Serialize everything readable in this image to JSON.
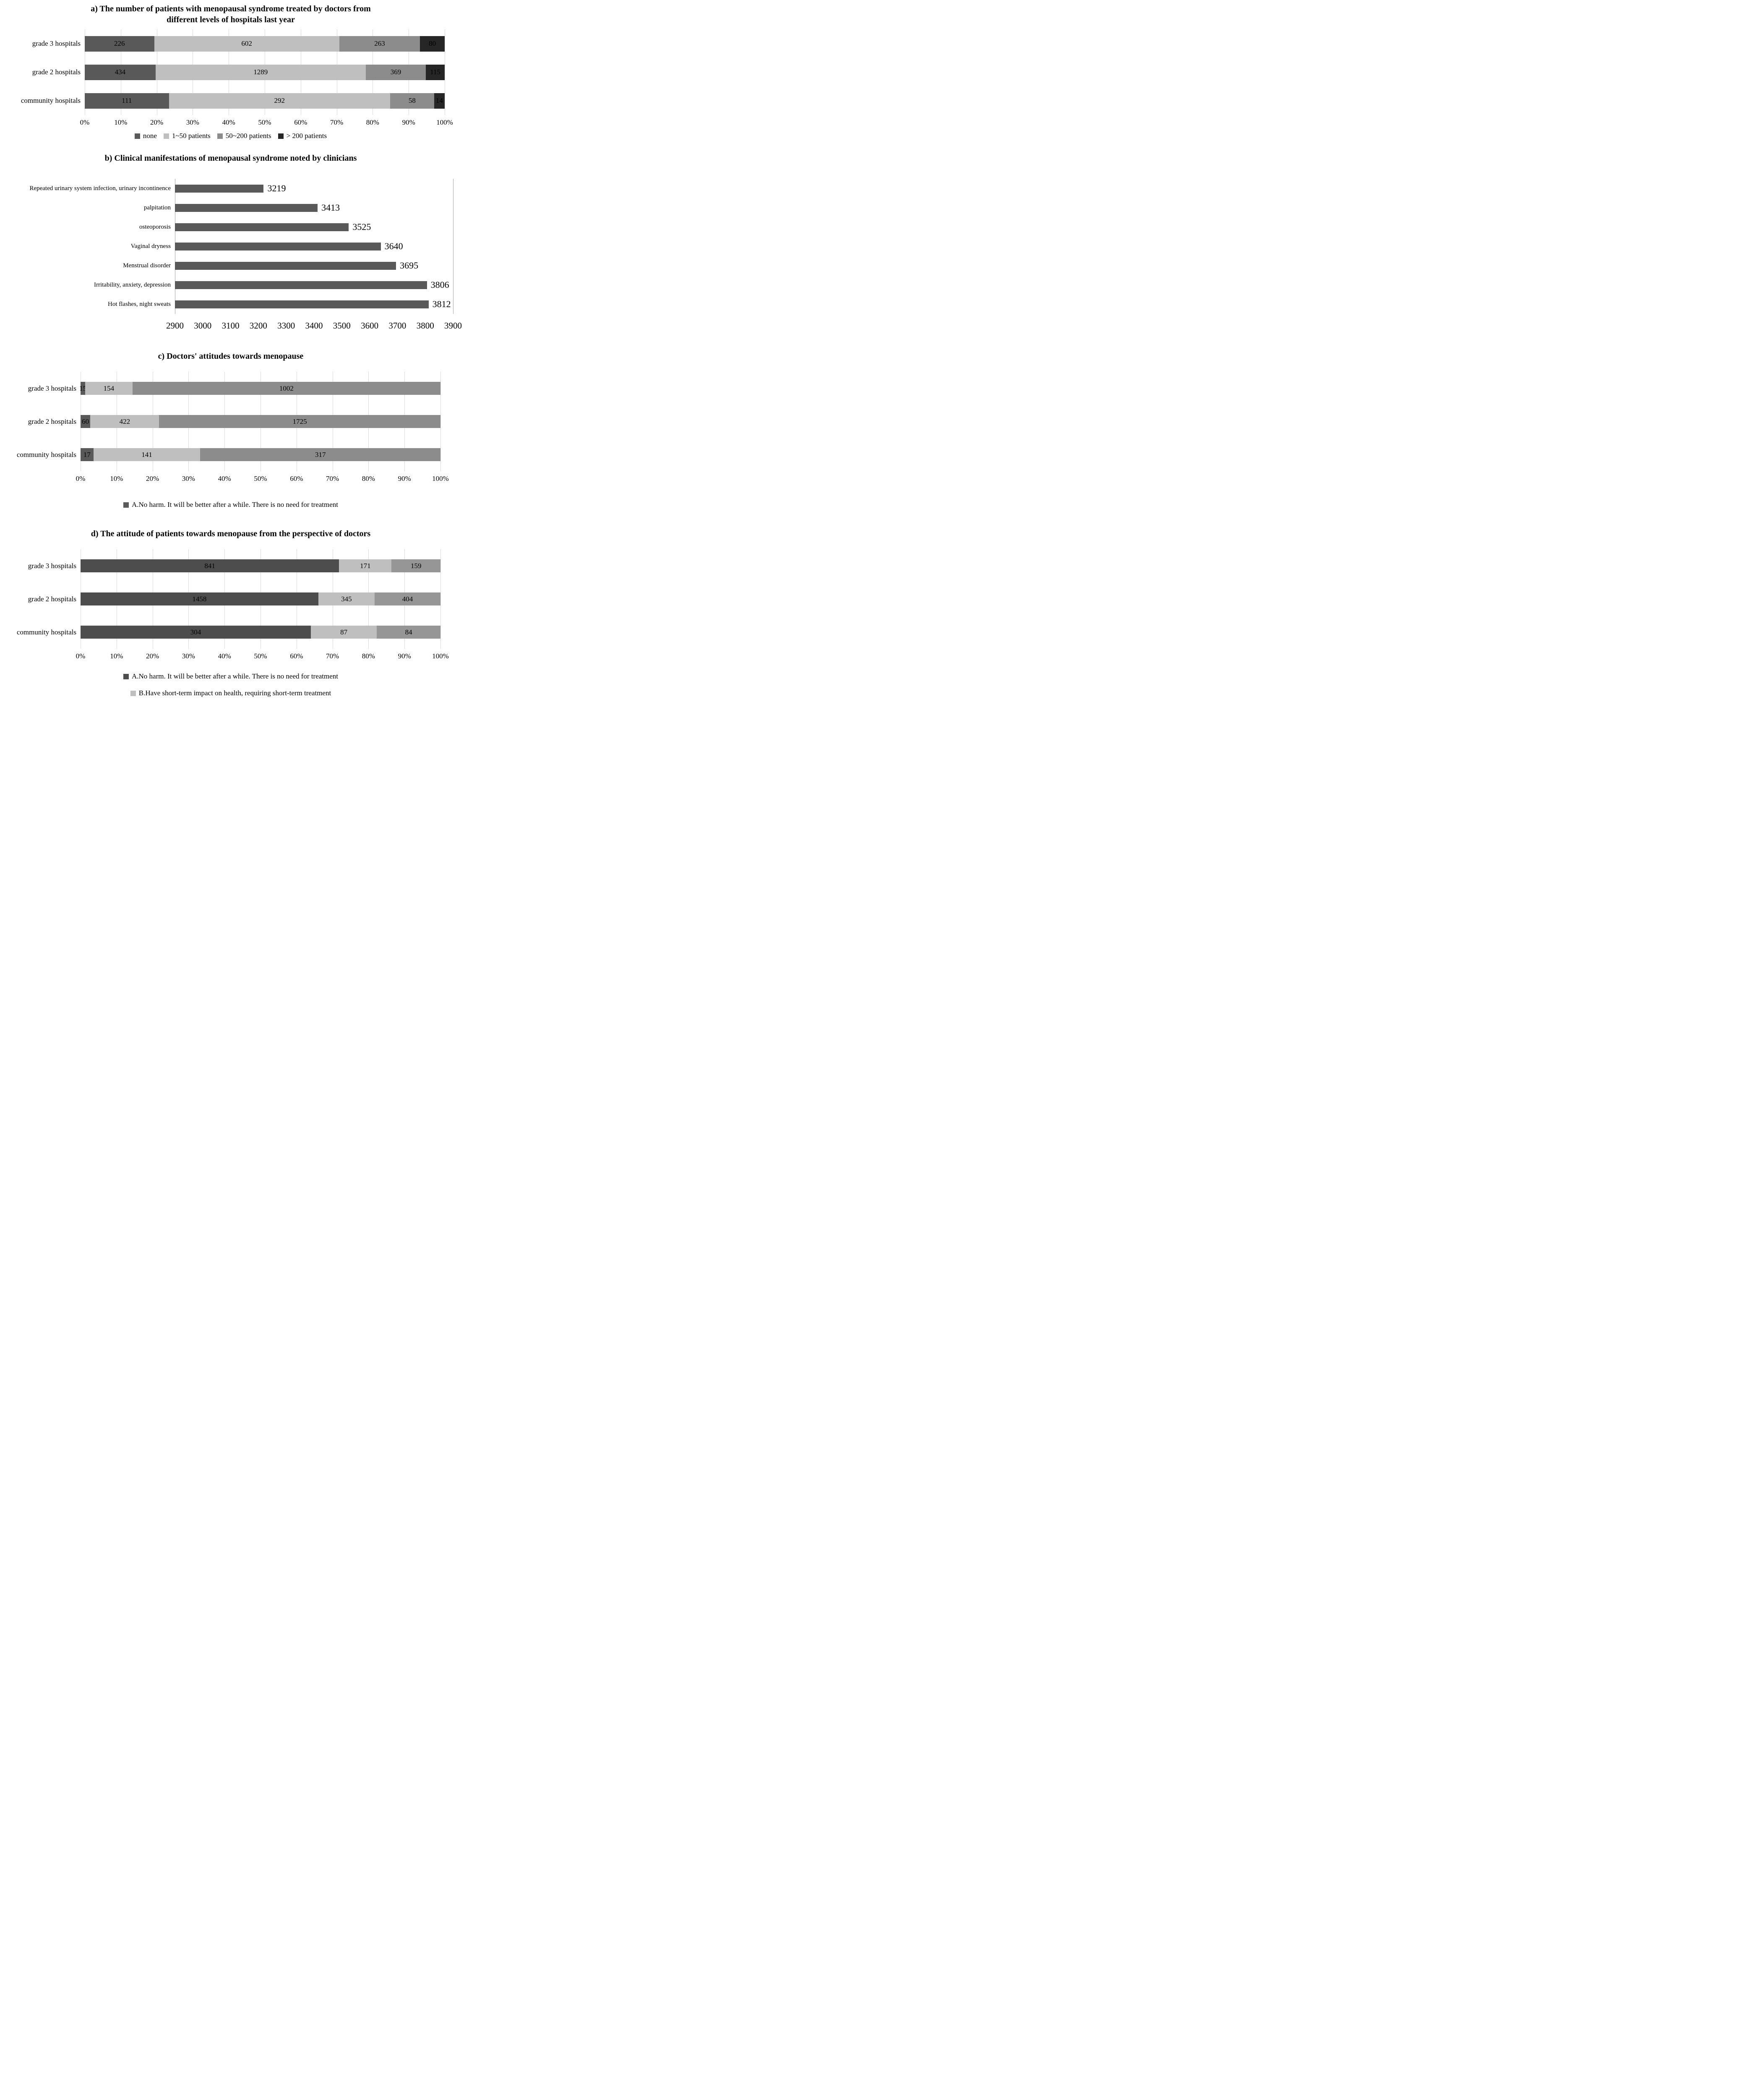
{
  "chart_data": [
    {
      "id": "a",
      "type": "bar",
      "subtype": "stacked-100-percent",
      "orientation": "horizontal",
      "title": "a) The number of patients with menopausal syndrome treated by doctors from different levels of hospitals last year",
      "categories": [
        "grade 3 hospitals",
        "grade 2 hospitals",
        "community hospitals"
      ],
      "series": [
        {
          "name": "none",
          "color": "#595959",
          "values": [
            226,
            434,
            111
          ]
        },
        {
          "name": "1~50 patients",
          "color": "#bfbfbf",
          "values": [
            602,
            1289,
            292
          ]
        },
        {
          "name": "50~200 patients",
          "color": "#8c8c8c",
          "values": [
            263,
            369,
            58
          ]
        },
        {
          "name": "> 200 patients",
          "color": "#262626",
          "values": [
            80,
            115,
            14
          ]
        }
      ],
      "x_ticks": [
        "0%",
        "10%",
        "20%",
        "30%",
        "40%",
        "50%",
        "60%",
        "70%",
        "80%",
        "90%",
        "100%"
      ],
      "grid": true,
      "legend_layout": "row",
      "legend": [
        {
          "label": "none",
          "color": "#595959"
        },
        {
          "label": "1~50 patients",
          "color": "#bfbfbf"
        },
        {
          "label": "50~200 patients",
          "color": "#8c8c8c"
        },
        {
          "label": "> 200 patients",
          "color": "#262626"
        }
      ]
    },
    {
      "id": "b",
      "type": "bar",
      "orientation": "horizontal",
      "title": "b) Clinical manifestations of menopausal syndrome noted by clinicians",
      "categories": [
        "Repeated urinary system infection, urinary incontinence",
        "palpitation",
        "osteoporosis",
        "Vaginal dryness",
        "Menstrual disorder",
        "Irritability, anxiety, depression",
        "Hot flashes, night sweats"
      ],
      "values": [
        3219,
        3413,
        3525,
        3640,
        3695,
        3806,
        3812
      ],
      "bar_color": "#595959",
      "xlim": [
        2900,
        3900
      ],
      "x_ticks": [
        "2900",
        "3000",
        "3100",
        "3200",
        "3300",
        "3400",
        "3500",
        "3600",
        "3700",
        "3800",
        "3900"
      ],
      "data_labels": true,
      "grid": false
    },
    {
      "id": "c",
      "type": "bar",
      "subtype": "stacked-100-percent",
      "orientation": "horizontal",
      "title": "c) Doctors' attitudes towards menopause",
      "categories": [
        "grade 3 hospitals",
        "grade 2 hospitals",
        "community hospitals"
      ],
      "series": [
        {
          "name": "A.No harm. It will be better after a while. There is no need for treatment",
          "color": "#595959",
          "values": [
            15,
            60,
            17
          ]
        },
        {
          "name": "",
          "color": "#bfbfbf",
          "values": [
            154,
            422,
            141
          ]
        },
        {
          "name": "",
          "color": "#8c8c8c",
          "values": [
            1002,
            1725,
            317
          ]
        }
      ],
      "x_ticks": [
        "0%",
        "10%",
        "20%",
        "30%",
        "40%",
        "50%",
        "60%",
        "70%",
        "80%",
        "90%",
        "100%"
      ],
      "grid": true,
      "legend_layout": "column",
      "legend": [
        {
          "label": "A.No harm. It will be better after a while. There is no need for treatment",
          "color": "#595959"
        }
      ]
    },
    {
      "id": "d",
      "type": "bar",
      "subtype": "stacked-100-percent",
      "orientation": "horizontal",
      "title": "d) The attitude of patients towards menopause from the perspective of doctors",
      "categories": [
        "grade 3 hospitals",
        "grade 2 hospitals",
        "community hospitals"
      ],
      "series": [
        {
          "name": "A.No harm. It will be better after a while. There is no need for treatment",
          "color": "#4d4d4d",
          "values": [
            841,
            1458,
            304
          ]
        },
        {
          "name": "B.Have short-term impact on health, requiring short-term treatment",
          "color": "#bfbfbf",
          "values": [
            171,
            345,
            87
          ]
        },
        {
          "name": "",
          "color": "#969696",
          "values": [
            159,
            404,
            84
          ]
        }
      ],
      "x_ticks": [
        "0%",
        "10%",
        "20%",
        "30%",
        "40%",
        "50%",
        "60%",
        "70%",
        "80%",
        "90%",
        "100%"
      ],
      "grid": true,
      "legend_layout": "column",
      "legend": [
        {
          "label": "A.No harm. It will be better after a while. There is no need for treatment",
          "color": "#4d4d4d"
        },
        {
          "label": "B.Have short-term impact on health, requiring short-term treatment",
          "color": "#bfbfbf"
        }
      ]
    }
  ]
}
